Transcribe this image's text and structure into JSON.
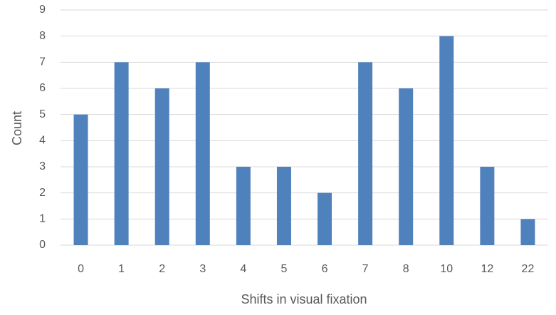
{
  "chart_data": {
    "type": "bar",
    "x_label": "Shifts in visual fixation",
    "y_label": "Count",
    "categories": [
      "0",
      "1",
      "2",
      "3",
      "4",
      "5",
      "6",
      "7",
      "8",
      "10",
      "12",
      "22"
    ],
    "values": [
      5,
      7,
      6,
      7,
      3,
      3,
      2,
      7,
      6,
      8,
      3,
      1
    ],
    "color": "#4f81bd",
    "ylim": [
      0,
      9
    ],
    "yticks": [
      0,
      1,
      2,
      3,
      4,
      5,
      6,
      7,
      8,
      9
    ],
    "grid": true
  }
}
